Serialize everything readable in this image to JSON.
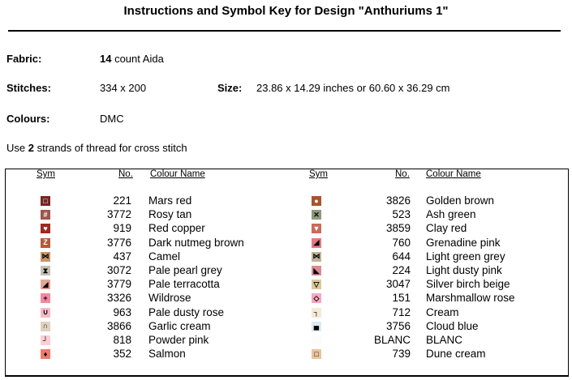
{
  "title": "Instructions and Symbol Key for Design \"Anthuriums 1\"",
  "fabric": {
    "label": "Fabric:",
    "count": "14",
    "value": " count Aida"
  },
  "stitches": {
    "label": "Stitches:",
    "value": "334 x 200"
  },
  "size": {
    "label": "Size:",
    "value": "23.86 x 14.29 inches or 60.60 x 36.29 cm"
  },
  "colours": {
    "label": "Colours:",
    "value": "DMC"
  },
  "strands": {
    "pre": "Use ",
    "count": "2",
    "post": " strands of thread for cross stitch"
  },
  "headers": {
    "sym": "Sym",
    "no": "No.",
    "name": "Colour Name"
  },
  "left": [
    {
      "sym": "□",
      "color": "#7a2323",
      "fg": "#fff",
      "no": "221",
      "name": "Mars red"
    },
    {
      "sym": "#",
      "color": "#a0554a",
      "fg": "#fff",
      "no": "3772",
      "name": "Rosy tan"
    },
    {
      "sym": "♥",
      "color": "#9e2a22",
      "fg": "#fff",
      "no": "919",
      "name": "Red copper"
    },
    {
      "sym": "Z",
      "color": "#b65a38",
      "fg": "#fff",
      "no": "3776",
      "name": "Dark nutmeg brown"
    },
    {
      "sym": "⋈",
      "color": "#c9956a",
      "fg": "#000",
      "no": "437",
      "name": "Camel"
    },
    {
      "sym": "⧗",
      "color": "#c4c1b4",
      "fg": "#000",
      "no": "3072",
      "name": "Pale pearl grey"
    },
    {
      "sym": "◢",
      "color": "#e3a596",
      "fg": "#000",
      "no": "3779",
      "name": "Pale terracotta"
    },
    {
      "sym": "+",
      "color": "#f08aa0",
      "fg": "#000",
      "no": "3326",
      "name": "Wildrose"
    },
    {
      "sym": "∪",
      "color": "#f7b9c6",
      "fg": "#000",
      "no": "963",
      "name": "Pale dusty rose"
    },
    {
      "sym": "∩",
      "color": "#e0d2bf",
      "fg": "#000",
      "no": "3866",
      "name": "Garlic cream"
    },
    {
      "sym": "┘",
      "color": "#f8cfd4",
      "fg": "#000",
      "no": "818",
      "name": "Powder pink"
    },
    {
      "sym": "♦",
      "color": "#ee7a6c",
      "fg": "#000",
      "no": "352",
      "name": "Salmon"
    }
  ],
  "right": [
    {
      "sym": "●",
      "color": "#a8552c",
      "fg": "#fff",
      "no": "3826",
      "name": "Golden brown"
    },
    {
      "sym": "✕",
      "color": "#8e9a7c",
      "fg": "#000",
      "no": "523",
      "name": "Ash green"
    },
    {
      "sym": "▼",
      "color": "#c86c5c",
      "fg": "#fff",
      "no": "3859",
      "name": "Clay red"
    },
    {
      "sym": "◢",
      "color": "#e67882",
      "fg": "#000",
      "no": "760",
      "name": "Grenadine pink"
    },
    {
      "sym": "⋈",
      "color": "#bfb396",
      "fg": "#000",
      "no": "644",
      "name": "Light green grey"
    },
    {
      "sym": "◣",
      "color": "#d98b92",
      "fg": "#000",
      "no": "224",
      "name": "Light dusty pink"
    },
    {
      "sym": "▽",
      "color": "#dcc99a",
      "fg": "#000",
      "no": "3047",
      "name": "Silver birch beige"
    },
    {
      "sym": "◇",
      "color": "#f7a7c0",
      "fg": "#000",
      "no": "151",
      "name": "Marshmallow rose"
    },
    {
      "sym": "┐",
      "color": "#f4ead8",
      "fg": "#000",
      "no": "712",
      "name": "Cream"
    },
    {
      "sym": "▄",
      "color": "#dde9f2",
      "fg": "#000",
      "no": "3756",
      "name": "Cloud blue"
    },
    {
      "sym": "",
      "color": "#fcfcfc",
      "fg": "#000",
      "no": "BLANC",
      "name": "BLANC"
    },
    {
      "sym": "□",
      "color": "#ebc49c",
      "fg": "#000",
      "no": "739",
      "name": "Dune cream"
    }
  ]
}
